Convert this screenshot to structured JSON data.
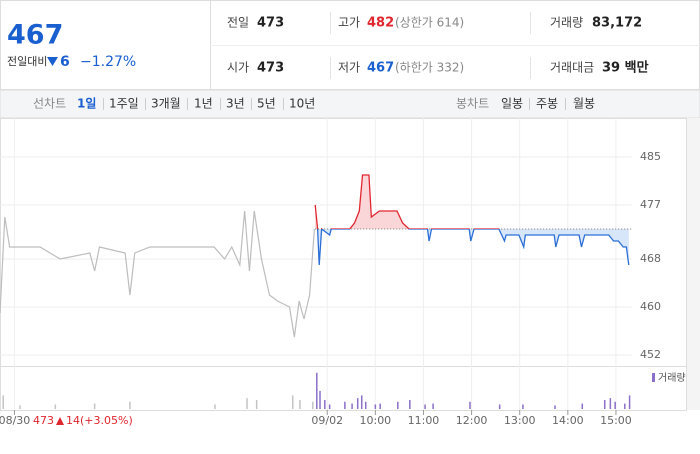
{
  "quote": {
    "price": 467,
    "change_label": "전일대비",
    "change": 6,
    "change_pct": "−1.27%"
  },
  "info": {
    "rows": [
      [
        {
          "label": "전일",
          "value": 473
        },
        {
          "label": "고가",
          "value": 482,
          "limit": "(상한가 614)"
        },
        {
          "label": "거래량",
          "value": "83,172"
        }
      ],
      [
        {
          "label": "시가",
          "value": 473
        },
        {
          "label": "저가",
          "value": 467,
          "limit": "(하한가 332)"
        },
        {
          "label": "거래대금",
          "value": "39 백만"
        }
      ]
    ]
  },
  "tabs": {
    "line": {
      "label": "선차트",
      "items": [
        "1일",
        "1주일",
        "3개월",
        "1년",
        "3년",
        "5년",
        "10년"
      ]
    },
    "candle": {
      "label": "봉차트",
      "items": [
        "일봉",
        "주봉",
        "월봉"
      ]
    }
  },
  "chart_data": {
    "type": "line",
    "xlim": [
      0,
      788
    ],
    "xticks": [
      {
        "value": 18,
        "label": "08/30"
      },
      {
        "value": 408,
        "label": "09/02"
      },
      {
        "value": 468,
        "label": "10:00"
      },
      {
        "value": 528,
        "label": "11:00"
      },
      {
        "value": 588,
        "label": "12:00"
      },
      {
        "value": 648,
        "label": "13:00"
      },
      {
        "value": 708,
        "label": "14:00"
      },
      {
        "value": 768,
        "label": "15:00"
      }
    ],
    "ylim": [
      450,
      490
    ],
    "yticks": [
      452,
      460,
      468,
      477,
      485
    ],
    "grid": true,
    "series": [
      {
        "color": "#bdbdbd",
        "x": [
          0,
          6,
          12,
          50,
          75,
          112,
          118,
          124,
          156,
          162,
          168,
          187,
          267,
          280,
          289,
          299,
          305,
          311,
          317,
          326,
          336,
          346,
          361,
          367,
          373,
          379,
          386,
          392
        ],
        "values": [
          459,
          475,
          470,
          470,
          468,
          469,
          466,
          470,
          469,
          462,
          469,
          470,
          470,
          468,
          470,
          467,
          476,
          466,
          476,
          468,
          462,
          461,
          460,
          455,
          461,
          458,
          462,
          473
        ]
      },
      {
        "color_up": "#e0262f",
        "color_down": "#2b6fd6",
        "fill_up": "#fad6d9",
        "fill_down": "#d7e6f8",
        "x": [
          393,
          396,
          398,
          401,
          411,
          413,
          436,
          442,
          448,
          452,
          460,
          463,
          473,
          485,
          495,
          502,
          510,
          533,
          535,
          538,
          585,
          587,
          591,
          622,
          629,
          631,
          647,
          653,
          655,
          691,
          693,
          697,
          722,
          725,
          729,
          759,
          765,
          771,
          777,
          781,
          784
        ],
        "values": [
          477,
          473,
          467,
          473,
          472,
          473,
          473,
          474,
          476,
          482,
          482,
          475,
          476,
          476,
          476,
          474,
          473,
          473,
          471,
          473,
          473,
          471,
          473,
          473,
          471,
          472,
          472,
          470,
          472,
          472,
          470,
          472,
          472,
          470,
          472,
          472,
          471,
          471,
          470,
          470,
          467
        ]
      }
    ],
    "volume": {
      "name": "거래량",
      "color": "#8b6fc8",
      "prev_color": "#c4c4c4",
      "ylim": [
        0,
        4200
      ],
      "x": [
        4,
        25,
        69,
        118,
        162,
        268,
        308,
        320,
        365,
        374,
        390,
        395,
        399,
        405,
        411,
        430,
        439,
        446,
        451,
        456,
        468,
        474,
        496,
        511,
        530,
        540,
        586,
        623,
        652,
        692,
        726,
        754,
        761,
        767,
        779,
        785
      ],
      "values": [
        1500,
        400,
        500,
        600,
        800,
        500,
        1200,
        1000,
        1500,
        1000,
        800,
        4000,
        2000,
        1000,
        500,
        800,
        600,
        1200,
        1500,
        800,
        500,
        600,
        800,
        1000,
        500,
        600,
        800,
        500,
        500,
        400,
        600,
        1000,
        1200,
        800,
        600,
        1500
      ]
    },
    "prev_summary": {
      "close": 473,
      "change": 14,
      "change_pct": "(+3.05%)"
    }
  }
}
